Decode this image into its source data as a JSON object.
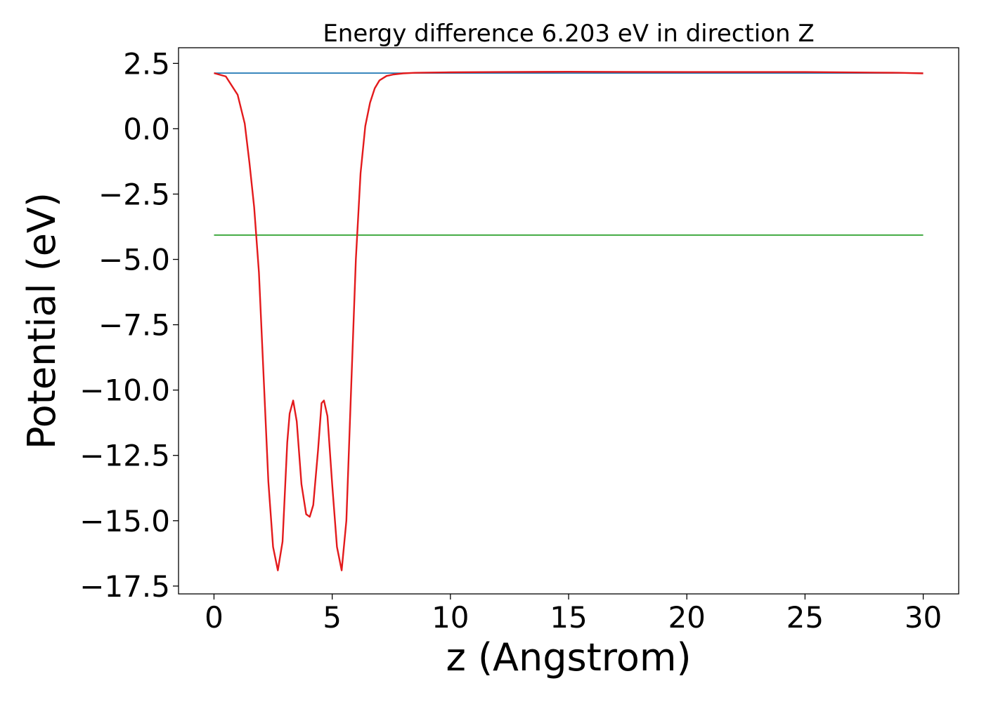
{
  "chart_data": {
    "type": "line",
    "title": "Energy difference 6.203 eV in direction Z",
    "xlabel": "z (Angstrom)",
    "ylabel": "Potential (eV)",
    "xlim": [
      -1.5,
      31.5
    ],
    "ylim": [
      -17.8,
      3.1
    ],
    "xticks": [
      {
        "value": 0,
        "label": "0"
      },
      {
        "value": 5,
        "label": "5"
      },
      {
        "value": 10,
        "label": "10"
      },
      {
        "value": 15,
        "label": "15"
      },
      {
        "value": 20,
        "label": "20"
      },
      {
        "value": 25,
        "label": "25"
      },
      {
        "value": 30,
        "label": "30"
      }
    ],
    "yticks": [
      {
        "value": 2.5,
        "label": "2.5"
      },
      {
        "value": 0,
        "label": "0.0"
      },
      {
        "value": -2.5,
        "label": "−2.5"
      },
      {
        "value": -5,
        "label": "−5.0"
      },
      {
        "value": -7.5,
        "label": "−7.5"
      },
      {
        "value": -10,
        "label": "−10.0"
      },
      {
        "value": -12.5,
        "label": "−12.5"
      },
      {
        "value": -15,
        "label": "−15.0"
      },
      {
        "value": -17.5,
        "label": "−17.5"
      }
    ],
    "grid": false,
    "series": [
      {
        "color": "#1f77b4",
        "x": [
          0,
          30
        ],
        "y": [
          2.13,
          2.13
        ]
      },
      {
        "color": "#2ca02c",
        "x": [
          0,
          30
        ],
        "y": [
          -4.07,
          -4.07
        ]
      },
      {
        "color": "#e31a1c",
        "x": [
          0,
          0.5,
          1.0,
          1.3,
          1.5,
          1.7,
          1.9,
          2.1,
          2.3,
          2.5,
          2.7,
          2.9,
          3.1,
          3.2,
          3.35,
          3.5,
          3.7,
          3.9,
          4.05,
          4.2,
          4.4,
          4.55,
          4.65,
          4.8,
          5.0,
          5.2,
          5.4,
          5.6,
          5.8,
          6.0,
          6.2,
          6.4,
          6.6,
          6.8,
          7.0,
          7.3,
          7.6,
          8.0,
          8.5,
          9.0,
          10,
          12,
          15,
          20,
          25,
          28,
          29,
          30
        ],
        "y": [
          2.13,
          2.0,
          1.3,
          0.2,
          -1.3,
          -3.0,
          -5.5,
          -9.5,
          -13.5,
          -16.0,
          -16.9,
          -15.8,
          -12.0,
          -10.9,
          -10.4,
          -11.2,
          -13.6,
          -14.75,
          -14.85,
          -14.4,
          -12.3,
          -10.5,
          -10.4,
          -11.0,
          -13.6,
          -16.0,
          -16.9,
          -15.0,
          -10.0,
          -5.0,
          -1.7,
          0.1,
          1.0,
          1.55,
          1.85,
          2.02,
          2.08,
          2.12,
          2.14,
          2.15,
          2.16,
          2.17,
          2.18,
          2.17,
          2.17,
          2.15,
          2.14,
          2.12
        ]
      }
    ]
  }
}
